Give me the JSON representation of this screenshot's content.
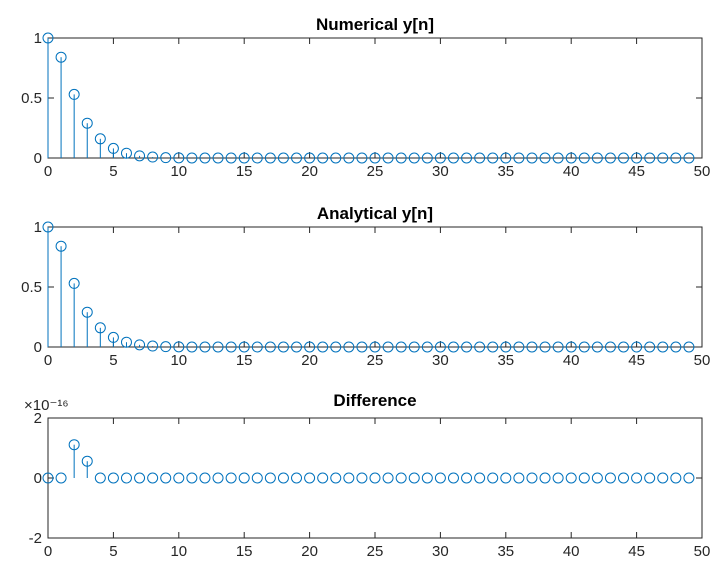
{
  "colors": {
    "series": "#0072BD",
    "axes": "#262626",
    "background": "#ffffff"
  },
  "chart_data": [
    {
      "type": "stem",
      "title": "Numerical y[n]",
      "xlabel": "",
      "ylabel": "",
      "xlim": [
        0,
        50
      ],
      "ylim": [
        0,
        1
      ],
      "x_ticks": [
        "0",
        "5",
        "10",
        "15",
        "20",
        "25",
        "30",
        "35",
        "40",
        "45",
        "50"
      ],
      "y_ticks": [
        "0",
        "0.5",
        "1"
      ],
      "exponent_label": "",
      "grid": false,
      "legend": "none",
      "x": [
        0,
        1,
        2,
        3,
        4,
        5,
        6,
        7,
        8,
        9,
        10,
        11,
        12,
        13,
        14,
        15,
        16,
        17,
        18,
        19,
        20,
        21,
        22,
        23,
        24,
        25,
        26,
        27,
        28,
        29,
        30,
        31,
        32,
        33,
        34,
        35,
        36,
        37,
        38,
        39,
        40,
        41,
        42,
        43,
        44,
        45,
        46,
        47,
        48,
        49
      ],
      "values": [
        1,
        0.84,
        0.53,
        0.29,
        0.16,
        0.08,
        0.04,
        0.018,
        0.008,
        0.003,
        0.001,
        0,
        0,
        0,
        0,
        0,
        0,
        0,
        0,
        0,
        0,
        0,
        0,
        0,
        0,
        0,
        0,
        0,
        0,
        0,
        0,
        0,
        0,
        0,
        0,
        0,
        0,
        0,
        0,
        0,
        0,
        0,
        0,
        0,
        0,
        0,
        0,
        0,
        0,
        0
      ]
    },
    {
      "type": "stem",
      "title": "Analytical y[n]",
      "xlabel": "",
      "ylabel": "",
      "xlim": [
        0,
        50
      ],
      "ylim": [
        0,
        1
      ],
      "x_ticks": [
        "0",
        "5",
        "10",
        "15",
        "20",
        "25",
        "30",
        "35",
        "40",
        "45",
        "50"
      ],
      "y_ticks": [
        "0",
        "0.5",
        "1"
      ],
      "exponent_label": "",
      "grid": false,
      "legend": "none",
      "x": [
        0,
        1,
        2,
        3,
        4,
        5,
        6,
        7,
        8,
        9,
        10,
        11,
        12,
        13,
        14,
        15,
        16,
        17,
        18,
        19,
        20,
        21,
        22,
        23,
        24,
        25,
        26,
        27,
        28,
        29,
        30,
        31,
        32,
        33,
        34,
        35,
        36,
        37,
        38,
        39,
        40,
        41,
        42,
        43,
        44,
        45,
        46,
        47,
        48,
        49
      ],
      "values": [
        1,
        0.84,
        0.53,
        0.29,
        0.16,
        0.08,
        0.04,
        0.018,
        0.008,
        0.003,
        0.001,
        0,
        0,
        0,
        0,
        0,
        0,
        0,
        0,
        0,
        0,
        0,
        0,
        0,
        0,
        0,
        0,
        0,
        0,
        0,
        0,
        0,
        0,
        0,
        0,
        0,
        0,
        0,
        0,
        0,
        0,
        0,
        0,
        0,
        0,
        0,
        0,
        0,
        0,
        0
      ]
    },
    {
      "type": "stem",
      "title": "Difference",
      "xlabel": "",
      "ylabel": "",
      "xlim": [
        0,
        50
      ],
      "ylim": [
        -2,
        2
      ],
      "x_ticks": [
        "0",
        "5",
        "10",
        "15",
        "20",
        "25",
        "30",
        "35",
        "40",
        "45",
        "50"
      ],
      "y_ticks": [
        "-2",
        "0",
        "2"
      ],
      "exponent_label": "×10⁻¹⁶",
      "grid": false,
      "legend": "none",
      "x": [
        0,
        1,
        2,
        3,
        4,
        5,
        6,
        7,
        8,
        9,
        10,
        11,
        12,
        13,
        14,
        15,
        16,
        17,
        18,
        19,
        20,
        21,
        22,
        23,
        24,
        25,
        26,
        27,
        28,
        29,
        30,
        31,
        32,
        33,
        34,
        35,
        36,
        37,
        38,
        39,
        40,
        41,
        42,
        43,
        44,
        45,
        46,
        47,
        48,
        49
      ],
      "values": [
        0,
        0,
        1.11,
        0.56,
        0,
        0,
        0,
        0,
        0,
        0,
        0,
        0,
        0,
        0,
        0,
        0,
        0,
        0,
        0,
        0,
        0,
        0,
        0,
        0,
        0,
        0,
        0,
        0,
        0,
        0,
        0,
        0,
        0,
        0,
        0,
        0,
        0,
        0,
        0,
        0,
        0,
        0,
        0,
        0,
        0,
        0,
        0,
        0,
        0,
        0
      ]
    }
  ]
}
